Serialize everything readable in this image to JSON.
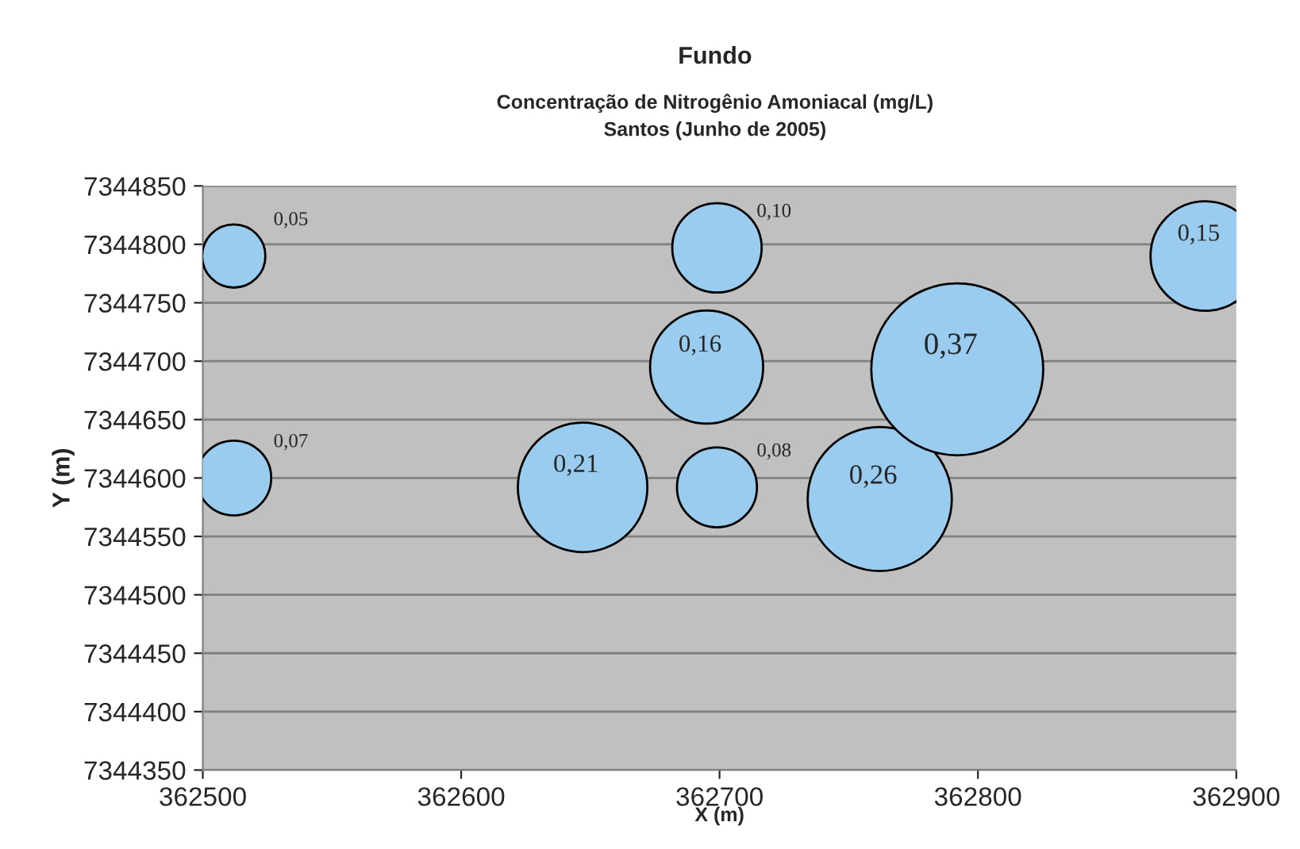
{
  "chart_data": {
    "type": "bubble",
    "title": "Fundo",
    "subtitle": "Concentração de Nitrogênio Amoniacal (mg/L)\nSantos (Junho de 2005)",
    "xlabel": "X (m)",
    "ylabel": "Y (m)",
    "x": [
      362512,
      362512,
      362647,
      362699,
      362695,
      362699,
      362762,
      362792,
      362888
    ],
    "series": [
      {
        "color": "#99ccee",
        "values": [
          7344790,
          7344600,
          7344592,
          7344592,
          7344695,
          7344797,
          7344582,
          7344693,
          7344790
        ],
        "sizes": [
          0.05,
          0.07,
          0.21,
          0.08,
          0.16,
          0.1,
          0.26,
          0.37,
          0.15
        ],
        "value_labels": [
          "0,05",
          "0,07",
          "0,21",
          "0,08",
          "0,16",
          "0,10",
          "0,26",
          "0,37",
          "0,15"
        ]
      }
    ],
    "xlim": [
      362500,
      362900
    ],
    "xticks": [
      362500,
      362600,
      362700,
      362800,
      362900
    ],
    "ylim": [
      7344350,
      7344850
    ],
    "yticks": [
      7344350,
      7344400,
      7344450,
      7344500,
      7344550,
      7344600,
      7344650,
      7344700,
      7344750,
      7344800,
      7344850
    ],
    "grid": "y",
    "legend": false
  }
}
